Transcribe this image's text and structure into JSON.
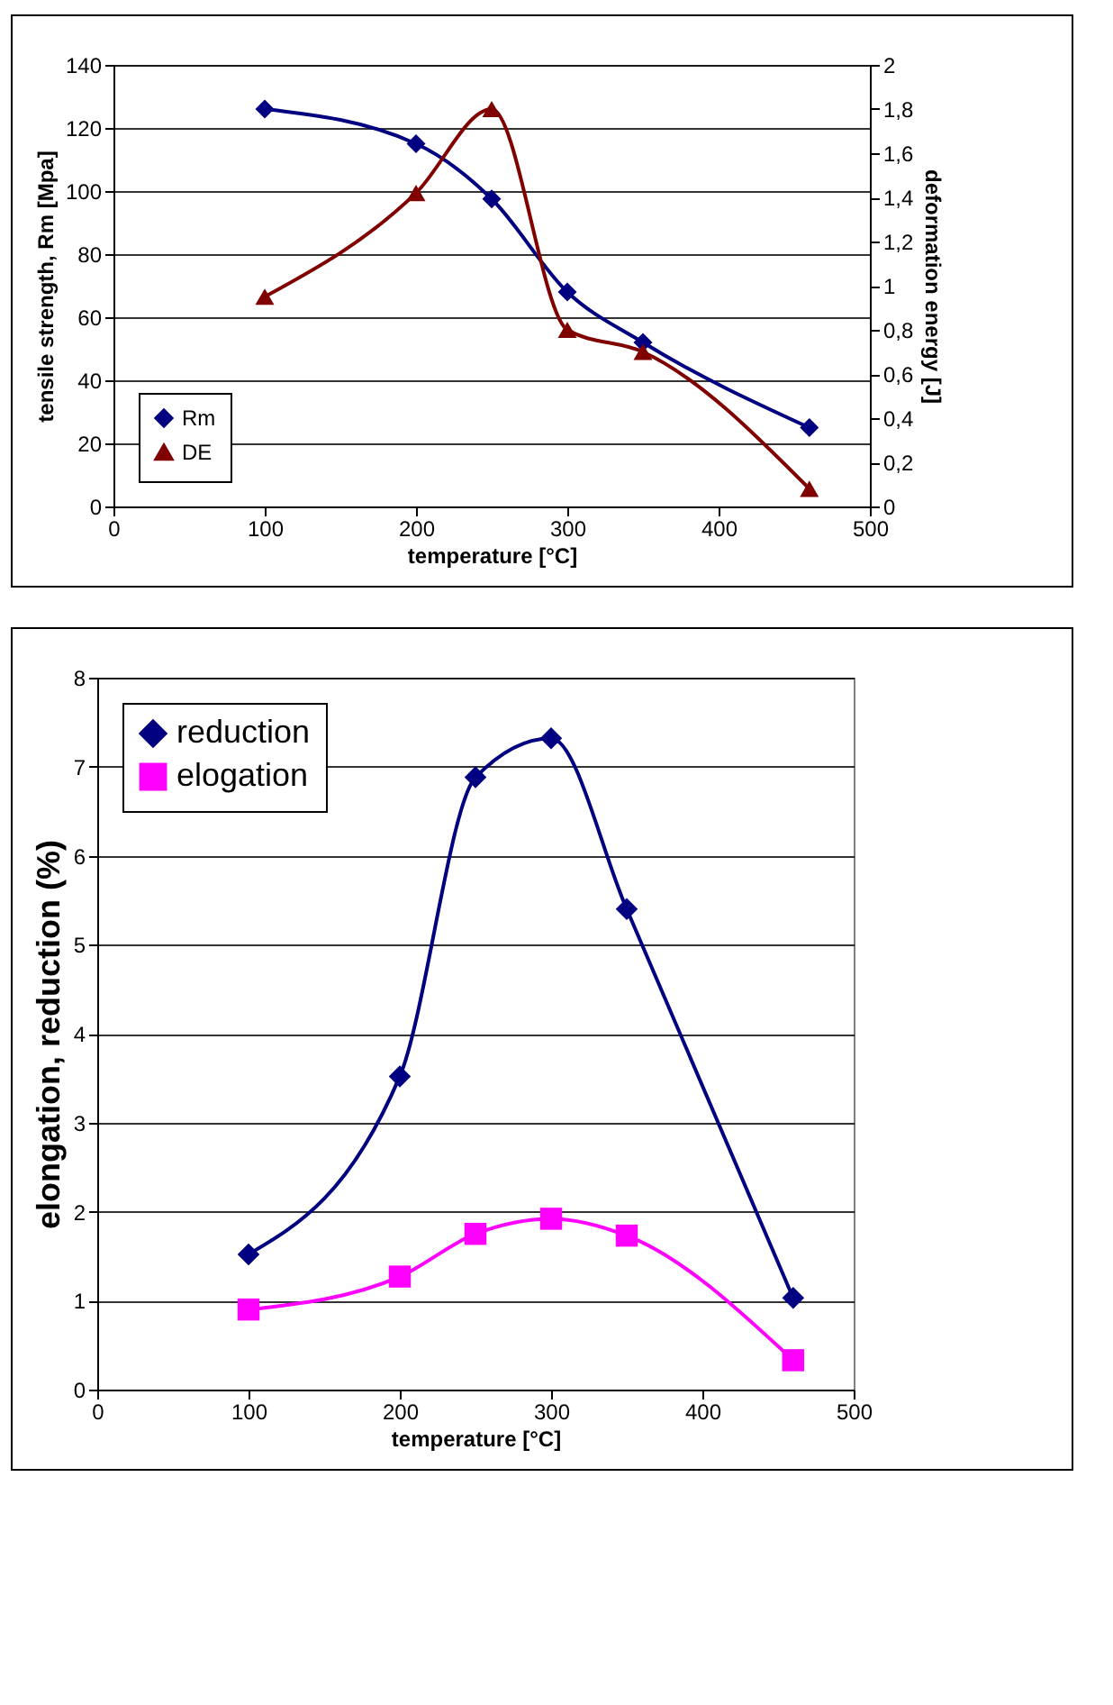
{
  "chart_data": [
    {
      "type": "line",
      "xlabel": "temperature [°C]",
      "ylabel": "tensile strength, Rm [Mpa]",
      "y2label": "deformation energy [J]",
      "xlim": [
        0,
        500
      ],
      "xticks": [
        0,
        100,
        200,
        300,
        400,
        500
      ],
      "ylim": [
        0,
        140
      ],
      "yticks": [
        0,
        20,
        40,
        60,
        80,
        100,
        120,
        140
      ],
      "y2lim": [
        0,
        2
      ],
      "y2ticks": [
        0,
        {
          "value": 0.2,
          "label": "0,2"
        },
        {
          "value": 0.4,
          "label": "0,4"
        },
        {
          "value": 0.6,
          "label": "0,6"
        },
        {
          "value": 0.8,
          "label": "0,8"
        },
        1,
        {
          "value": 1.2,
          "label": "1,2"
        },
        {
          "value": 1.4,
          "label": "1,4"
        },
        {
          "value": 1.6,
          "label": "1,6"
        },
        {
          "value": 1.8,
          "label": "1,8"
        },
        2
      ],
      "grid": "y",
      "legend": "bottom left",
      "x": [
        100,
        200,
        250,
        300,
        350,
        460
      ],
      "series": [
        {
          "name": "Rm",
          "color": "#000080",
          "marker": "diamond",
          "values": [
            126,
            115,
            97.5,
            68,
            52,
            25
          ]
        },
        {
          "name": "DE",
          "color": "#800000",
          "marker": "triangle",
          "axis": "y2",
          "values": [
            0.95,
            1.42,
            1.8,
            0.8,
            0.7,
            0.08
          ]
        }
      ]
    },
    {
      "type": "line",
      "xlabel": "temperature [°C]",
      "ylabel": "elongation, reduction (%)",
      "xlim": [
        0,
        500
      ],
      "xticks": [
        0,
        100,
        200,
        300,
        400,
        500
      ],
      "ylim": [
        0,
        8
      ],
      "yticks": [
        0,
        1,
        2,
        3,
        4,
        5,
        6,
        7,
        8
      ],
      "grid": "y",
      "legend": "top left",
      "x": [
        100,
        200,
        250,
        300,
        350,
        460
      ],
      "series": [
        {
          "name": "reduction",
          "color": "#000080",
          "marker": "diamond",
          "values": [
            1.52,
            3.52,
            6.88,
            7.32,
            5.4,
            1.03
          ]
        },
        {
          "name": "elogation",
          "color": "#ff00ff",
          "marker": "square",
          "values": [
            0.9,
            1.27,
            1.75,
            1.92,
            1.73,
            0.33
          ]
        }
      ]
    }
  ]
}
